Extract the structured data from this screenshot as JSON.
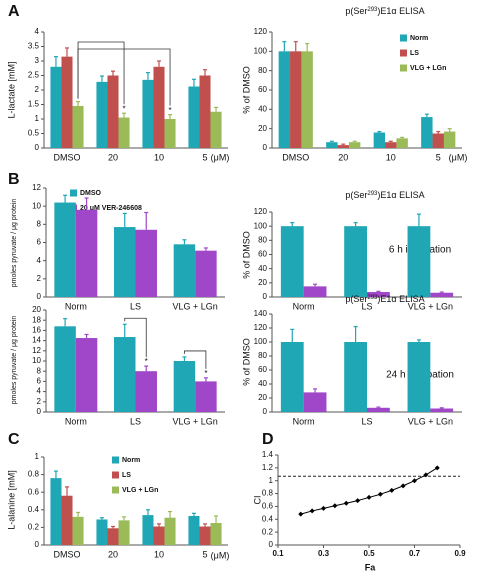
{
  "chart_data": [
    {
      "type": "bar",
      "panel": "A",
      "ylabel": "L-lactate [mM]",
      "categories": [
        "DMSO",
        "20",
        "10",
        "5"
      ],
      "x_unit": "(μM)",
      "ylim": [
        0,
        4
      ],
      "yticks": [
        0,
        0.5,
        1,
        1.5,
        2,
        2.5,
        3,
        3.5,
        4
      ],
      "series": [
        {
          "name": "Norm",
          "color": "#1fa7b5",
          "values": [
            2.8,
            2.28,
            2.35,
            2.12
          ],
          "errors": [
            0.35,
            0.2,
            0.25,
            0.25
          ],
          "annotations": [
            null,
            null,
            null,
            null
          ]
        },
        {
          "name": "LS",
          "color": "#c0504d",
          "values": [
            3.15,
            2.5,
            2.8,
            2.5
          ],
          "errors": [
            0.3,
            0.15,
            0.2,
            0.2
          ],
          "annotations": [
            null,
            null,
            null,
            null
          ]
        },
        {
          "name": "VLG + LGn",
          "color": "#9bbb59",
          "values": [
            1.45,
            1.05,
            1.0,
            1.25
          ],
          "errors": [
            0.15,
            0.15,
            0.15,
            0.15
          ],
          "annotations": [
            null,
            "*",
            "*",
            null
          ]
        }
      ]
    },
    {
      "type": "bar",
      "title": [
        "p(Ser",
        "293",
        ")E1α ELISA"
      ],
      "ylabel": "% of DMSO",
      "categories": [
        "DMSO",
        "20",
        "10",
        "5"
      ],
      "x_unit": "(μM)",
      "ylim": [
        0,
        120
      ],
      "yticks": [
        0,
        20,
        40,
        60,
        80,
        100,
        120
      ],
      "legend": true,
      "series": [
        {
          "name": "Norm",
          "color": "#1fa7b5",
          "values": [
            100,
            6,
            16,
            32
          ],
          "errors": [
            10,
            1,
            1,
            3
          ]
        },
        {
          "name": "LS",
          "color": "#c0504d",
          "values": [
            100,
            3,
            6,
            15
          ],
          "errors": [
            10,
            1,
            1,
            2
          ]
        },
        {
          "name": "VLG + LGn",
          "color": "#9bbb59",
          "values": [
            100,
            6,
            10,
            17
          ],
          "errors": [
            8,
            1,
            1,
            3
          ]
        }
      ]
    },
    {
      "type": "bar",
      "panel": "B",
      "ylabel": "pmoles pyruvate / μg protein",
      "categories": [
        "Norm",
        "LS",
        "VLG + LGn"
      ],
      "ylim": [
        0,
        12
      ],
      "yticks": [
        0,
        2,
        4,
        6,
        8,
        10,
        12
      ],
      "legend": true,
      "series": [
        {
          "name": "DMSO",
          "color": "#1fa7b5",
          "values": [
            10.4,
            7.7,
            5.8
          ],
          "errors": [
            0.8,
            1.5,
            0.5
          ]
        },
        {
          "name": "20 μM VER-246608",
          "color": "#a046c8",
          "values": [
            9.6,
            7.4,
            5.1
          ],
          "errors": [
            1.3,
            1.9,
            0.3
          ]
        }
      ]
    },
    {
      "type": "bar",
      "title": [
        "p(Ser",
        "293",
        ")E1α ELISA"
      ],
      "ylabel": "% of DMSO",
      "categories": [
        "Norm",
        "LS",
        "VLG + LGn"
      ],
      "annotation": "6 h incubation",
      "ylim": [
        0,
        120
      ],
      "yticks": [
        0,
        20,
        40,
        60,
        80,
        100,
        120
      ],
      "series": [
        {
          "name": "DMSO",
          "color": "#1fa7b5",
          "values": [
            100,
            100,
            100
          ],
          "errors": [
            5,
            5,
            17
          ]
        },
        {
          "name": "20 μM VER-246608",
          "color": "#a046c8",
          "values": [
            15,
            7,
            6
          ],
          "errors": [
            3,
            1,
            1
          ]
        }
      ]
    },
    {
      "type": "bar",
      "ylabel": "pmoles pyruvate / μg protein",
      "categories": [
        "Norm",
        "LS",
        "VLG + LGn"
      ],
      "ylim": [
        0,
        20
      ],
      "yticks": [
        0,
        2,
        4,
        6,
        8,
        10,
        12,
        14,
        16,
        18,
        20
      ],
      "series": [
        {
          "name": "DMSO",
          "color": "#1fa7b5",
          "values": [
            16.8,
            14.7,
            10
          ],
          "errors": [
            1.5,
            2.5,
            0.8
          ],
          "annotations": [
            null,
            null,
            null
          ]
        },
        {
          "name": "20 μM VER-246608",
          "color": "#a046c8",
          "values": [
            14.5,
            8,
            6
          ],
          "errors": [
            0.7,
            1,
            0.7
          ],
          "annotations": [
            null,
            "*",
            "*"
          ]
        }
      ]
    },
    {
      "type": "bar",
      "title": [
        "p(Ser",
        "293",
        ")E1α ELISA"
      ],
      "ylabel": "% of DMSO",
      "categories": [
        "Norm",
        "LS",
        "VLG + LGn"
      ],
      "annotation": "24 h incubation",
      "ylim": [
        0,
        140
      ],
      "yticks": [
        0,
        20,
        40,
        60,
        80,
        100,
        120,
        140
      ],
      "series": [
        {
          "name": "DMSO",
          "color": "#1fa7b5",
          "values": [
            100,
            100,
            100
          ],
          "errors": [
            18,
            22,
            3
          ]
        },
        {
          "name": "20 μM VER-246608",
          "color": "#a046c8",
          "values": [
            28,
            6,
            5
          ],
          "errors": [
            5,
            1,
            1
          ]
        }
      ]
    },
    {
      "type": "bar",
      "panel": "C",
      "ylabel": "L-alanine [mM]",
      "categories": [
        "DMSO",
        "20",
        "10",
        "5"
      ],
      "x_unit": "(μM)",
      "ylim": [
        0,
        1
      ],
      "yticks": [
        0,
        0.2,
        0.4,
        0.6,
        0.8,
        1
      ],
      "legend": true,
      "series": [
        {
          "name": "Norm",
          "color": "#1fa7b5",
          "values": [
            0.76,
            0.29,
            0.34,
            0.33
          ],
          "errors": [
            0.08,
            0.02,
            0.06,
            0.03
          ]
        },
        {
          "name": "LS",
          "color": "#c0504d",
          "values": [
            0.56,
            0.19,
            0.21,
            0.21
          ],
          "errors": [
            0.1,
            0.02,
            0.03,
            0.03
          ]
        },
        {
          "name": "VLG + LGn",
          "color": "#9bbb59",
          "values": [
            0.32,
            0.28,
            0.31,
            0.25
          ],
          "errors": [
            0.05,
            0.04,
            0.07,
            0.08
          ]
        }
      ]
    },
    {
      "type": "line",
      "panel": "D",
      "xlabel": "Fa",
      "ylabel": "CI",
      "x": [
        0.2,
        0.25,
        0.3,
        0.35,
        0.4,
        0.45,
        0.5,
        0.55,
        0.6,
        0.65,
        0.7,
        0.75,
        0.8
      ],
      "series": [
        {
          "color": "#000000",
          "values": [
            0.48,
            0.53,
            0.57,
            0.61,
            0.65,
            0.69,
            0.74,
            0.79,
            0.85,
            0.92,
            1.0,
            1.09,
            1.2
          ]
        }
      ],
      "reference_line": 1.07,
      "xlim": [
        0.1,
        0.9
      ],
      "xticks": [
        0.1,
        0.3,
        0.5,
        0.7,
        0.9
      ],
      "ylim": [
        0,
        1.4
      ],
      "yticks": [
        0,
        0.2,
        0.4,
        0.6,
        0.8,
        1,
        1.2,
        1.4
      ]
    }
  ]
}
